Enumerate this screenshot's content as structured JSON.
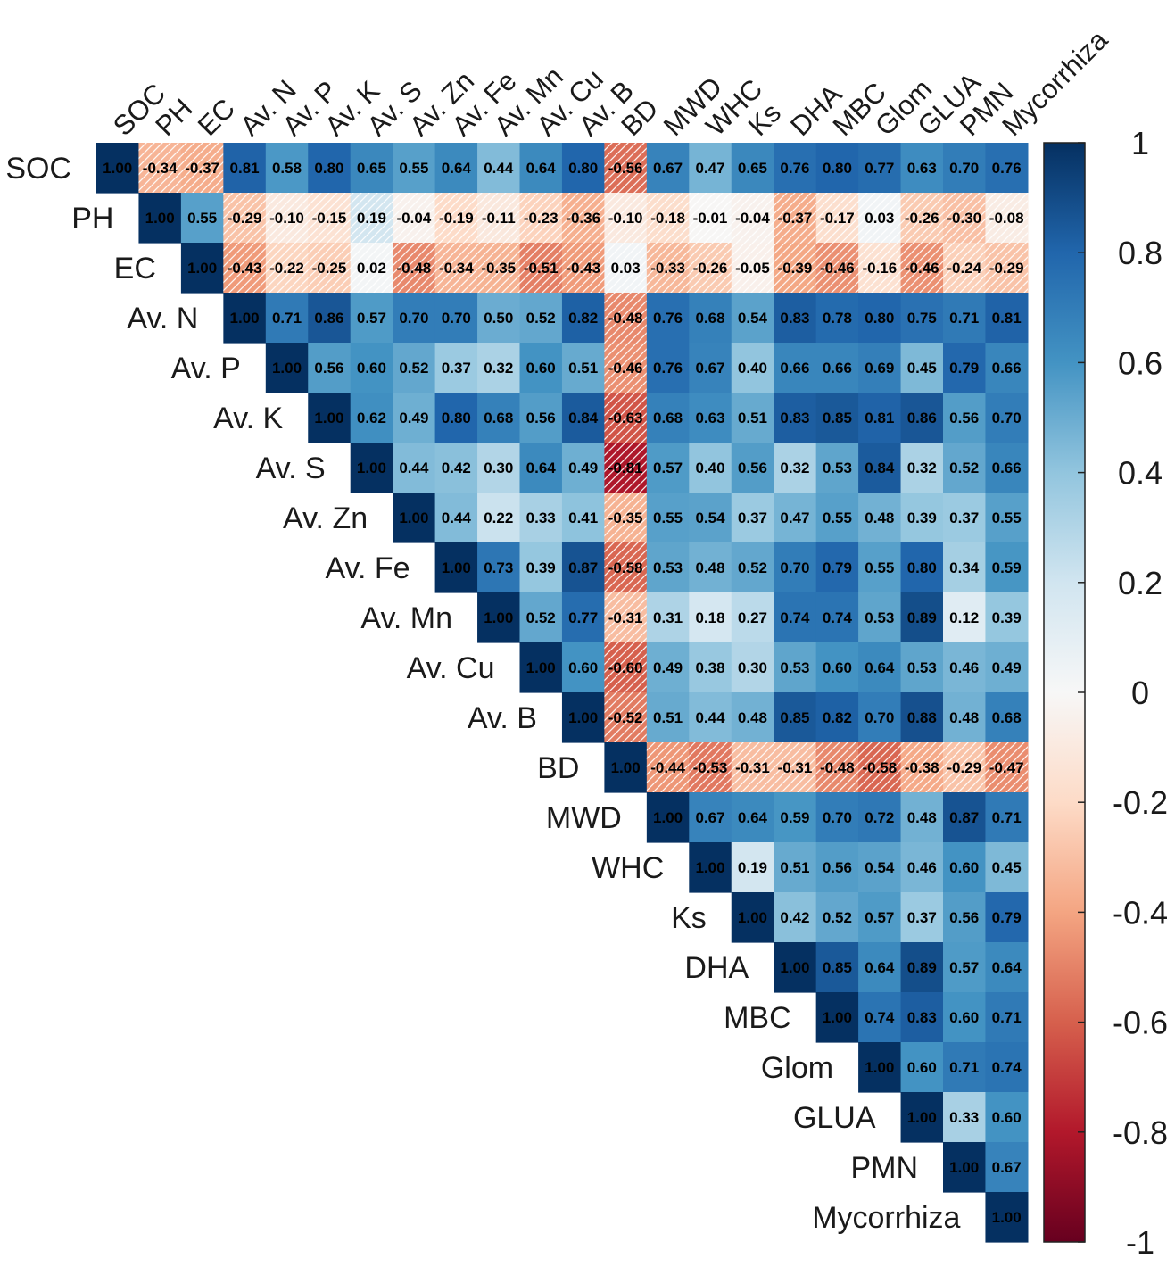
{
  "chart_data": {
    "type": "heatmap",
    "title": "",
    "variables": [
      "SOC",
      "PH",
      "EC",
      "Av. N",
      "Av. P",
      "Av. K",
      "Av. S",
      "Av. Zn",
      "Av. Fe",
      "Av. Mn",
      "Av. Cu",
      "Av. B",
      "BD",
      "MWD",
      "WHC",
      "Ks",
      "DHA",
      "MBC",
      "Glom",
      "GLUA",
      "PMN",
      "Mycorrhiza"
    ],
    "matrix_upper_rows": [
      [
        1.0,
        -0.34,
        -0.37,
        0.81,
        0.58,
        0.8,
        0.65,
        0.55,
        0.64,
        0.44,
        0.64,
        0.8,
        -0.56,
        0.67,
        0.47,
        0.65,
        0.76,
        0.8,
        0.77,
        0.63,
        0.7,
        0.76
      ],
      [
        1.0,
        0.55,
        -0.29,
        -0.1,
        -0.15,
        0.19,
        -0.04,
        -0.19,
        -0.11,
        -0.23,
        -0.36,
        -0.1,
        -0.18,
        -0.01,
        -0.04,
        -0.37,
        -0.17,
        0.03,
        -0.26,
        -0.3,
        -0.08
      ],
      [
        1.0,
        -0.43,
        -0.22,
        -0.25,
        0.02,
        -0.48,
        -0.34,
        -0.35,
        -0.51,
        -0.43,
        0.03,
        -0.33,
        -0.26,
        -0.05,
        -0.39,
        -0.46,
        -0.16,
        -0.46,
        -0.24,
        -0.29
      ],
      [
        1.0,
        0.71,
        0.86,
        0.57,
        0.7,
        0.7,
        0.5,
        0.52,
        0.82,
        -0.48,
        0.76,
        0.68,
        0.54,
        0.83,
        0.78,
        0.8,
        0.75,
        0.71,
        0.81
      ],
      [
        1.0,
        0.56,
        0.6,
        0.52,
        0.37,
        0.32,
        0.6,
        0.51,
        -0.46,
        0.76,
        0.67,
        0.4,
        0.66,
        0.66,
        0.69,
        0.45,
        0.79,
        0.66
      ],
      [
        1.0,
        0.62,
        0.49,
        0.8,
        0.68,
        0.56,
        0.84,
        -0.63,
        0.68,
        0.63,
        0.51,
        0.83,
        0.85,
        0.81,
        0.86,
        0.56,
        0.7
      ],
      [
        1.0,
        0.44,
        0.42,
        0.3,
        0.64,
        0.49,
        -0.81,
        0.57,
        0.4,
        0.56,
        0.32,
        0.53,
        0.84,
        0.32,
        0.52,
        0.66
      ],
      [
        1.0,
        0.44,
        0.22,
        0.33,
        0.41,
        -0.35,
        0.55,
        0.54,
        0.37,
        0.47,
        0.55,
        0.48,
        0.39,
        0.37,
        0.55
      ],
      [
        1.0,
        0.73,
        0.39,
        0.87,
        -0.58,
        0.53,
        0.48,
        0.52,
        0.7,
        0.79,
        0.55,
        0.8,
        0.34,
        0.59
      ],
      [
        1.0,
        0.52,
        0.77,
        -0.31,
        0.31,
        0.18,
        0.27,
        0.74,
        0.74,
        0.53,
        0.89,
        0.12,
        0.39
      ],
      [
        1.0,
        0.6,
        -0.6,
        0.49,
        0.38,
        0.3,
        0.53,
        0.6,
        0.64,
        0.53,
        0.46,
        0.49
      ],
      [
        1.0,
        -0.52,
        0.51,
        0.44,
        0.48,
        0.85,
        0.82,
        0.7,
        0.88,
        0.48,
        0.68
      ],
      [
        1.0,
        -0.44,
        -0.53,
        -0.31,
        -0.31,
        -0.48,
        -0.58,
        -0.38,
        -0.29,
        -0.47
      ],
      [
        1.0,
        0.67,
        0.64,
        0.59,
        0.7,
        0.72,
        0.48,
        0.87,
        0.71
      ],
      [
        1.0,
        0.19,
        0.51,
        0.56,
        0.54,
        0.46,
        0.6,
        0.45
      ],
      [
        1.0,
        0.42,
        0.52,
        0.57,
        0.37,
        0.56,
        0.79
      ],
      [
        1.0,
        0.85,
        0.64,
        0.89,
        0.57,
        0.64
      ],
      [
        1.0,
        0.74,
        0.83,
        0.6,
        0.71
      ],
      [
        1.0,
        0.6,
        0.71,
        0.74
      ],
      [
        1.0,
        0.33,
        0.6
      ],
      [
        1.0,
        0.67
      ],
      [
        1.0
      ]
    ],
    "color_scale": {
      "range": [
        -1,
        1
      ],
      "colors": {
        "neg": "#67001f",
        "mid": "#f7f7f7",
        "pos": "#053061"
      },
      "ticks": [
        "1",
        "0.8",
        "0.6",
        "0.4",
        "0.2",
        "0",
        "-0.2",
        "-0.4",
        "-0.6",
        "-0.8",
        "-1"
      ]
    },
    "hatched_pairs": [
      [
        "SOC",
        "PH"
      ],
      [
        "SOC",
        "EC"
      ],
      [
        "SOC",
        "BD"
      ],
      [
        "PH",
        "Av. N"
      ],
      [
        "PH",
        "Av. P"
      ],
      [
        "PH",
        "Av. K"
      ],
      [
        "PH",
        "Av. S"
      ],
      [
        "PH",
        "Av. Zn"
      ],
      [
        "PH",
        "Av. Fe"
      ],
      [
        "PH",
        "Av. Mn"
      ],
      [
        "PH",
        "Av. Cu"
      ],
      [
        "PH",
        "Av. B"
      ],
      [
        "PH",
        "BD"
      ],
      [
        "PH",
        "MWD"
      ],
      [
        "PH",
        "WHC"
      ],
      [
        "PH",
        "Ks"
      ],
      [
        "PH",
        "DHA"
      ],
      [
        "PH",
        "MBC"
      ],
      [
        "PH",
        "Glom"
      ],
      [
        "PH",
        "GLUA"
      ],
      [
        "PH",
        "PMN"
      ],
      [
        "PH",
        "Mycorrhiza"
      ],
      [
        "EC",
        "Av. N"
      ],
      [
        "EC",
        "Av. P"
      ],
      [
        "EC",
        "Av. K"
      ],
      [
        "EC",
        "Av. S"
      ],
      [
        "EC",
        "Av. Zn"
      ],
      [
        "EC",
        "Av. Fe"
      ],
      [
        "EC",
        "Av. Mn"
      ],
      [
        "EC",
        "Av. Cu"
      ],
      [
        "EC",
        "Av. B"
      ],
      [
        "EC",
        "BD"
      ],
      [
        "EC",
        "MWD"
      ],
      [
        "EC",
        "WHC"
      ],
      [
        "EC",
        "Ks"
      ],
      [
        "EC",
        "DHA"
      ],
      [
        "EC",
        "MBC"
      ],
      [
        "EC",
        "Glom"
      ],
      [
        "EC",
        "GLUA"
      ],
      [
        "EC",
        "PMN"
      ],
      [
        "EC",
        "Mycorrhiza"
      ],
      [
        "Av. N",
        "BD"
      ],
      [
        "Av. P",
        "BD"
      ],
      [
        "Av. K",
        "BD"
      ],
      [
        "Av. S",
        "BD"
      ],
      [
        "Av. Zn",
        "BD"
      ],
      [
        "Av. Fe",
        "BD"
      ],
      [
        "Av. Mn",
        "BD"
      ],
      [
        "Av. Cu",
        "BD"
      ],
      [
        "Av. B",
        "BD"
      ],
      [
        "BD",
        "MWD"
      ],
      [
        "BD",
        "WHC"
      ],
      [
        "BD",
        "Ks"
      ],
      [
        "BD",
        "DHA"
      ],
      [
        "BD",
        "MBC"
      ],
      [
        "BD",
        "Glom"
      ],
      [
        "BD",
        "GLUA"
      ],
      [
        "BD",
        "PMN"
      ],
      [
        "BD",
        "Mycorrhiza"
      ]
    ]
  }
}
